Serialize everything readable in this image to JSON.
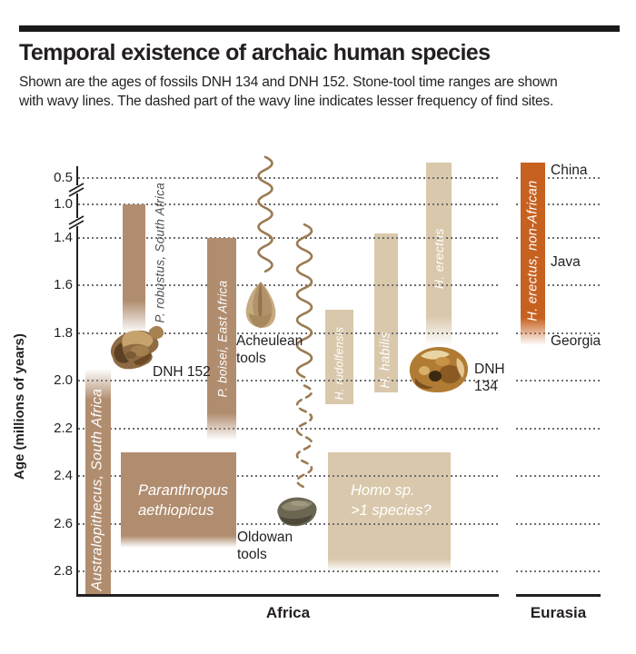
{
  "header": {
    "title": "Temporal existence of archaic human species",
    "subtitle_line1": "Shown are the ages of fossils DNH 134 and DNH 152. Stone-tool time ranges are shown",
    "subtitle_line2": "with wavy lines. The dashed part of the wavy line indicates lesser frequency of find sites."
  },
  "colors": {
    "dark_bar": "#b18d6f",
    "light_bar": "#d9c8ab",
    "orange_bar": "#c76120",
    "wave": "#9b7a53",
    "grid_dots": "#6d6e71",
    "ink": "#231f20",
    "outside_label": "#4d4d4f",
    "bar_label": "#ffffff"
  },
  "chart_data": {
    "type": "bar",
    "subtype": "vertical-timeline",
    "y_axis": {
      "label": "Age (millions of years)",
      "ticks": [
        "0.5",
        "1.0",
        "1.4",
        "1.6",
        "1.8",
        "2.0",
        "2.2",
        "2.4",
        "2.6",
        "2.8"
      ],
      "tick_values": [
        0.5,
        1.0,
        1.4,
        1.6,
        1.8,
        2.0,
        2.2,
        2.4,
        2.6,
        2.8
      ],
      "axis_breaks_between": [
        [
          0.5,
          1.0
        ],
        [
          1.0,
          1.4
        ]
      ],
      "grid": "dotted"
    },
    "regions": [
      {
        "id": "africa",
        "label": "Africa"
      },
      {
        "id": "eurasia",
        "label": "Eurasia"
      }
    ],
    "series": [
      {
        "label": "Australopithecus, South Africa",
        "region": "africa",
        "style": "dark",
        "start_age": 1.95,
        "end_age": 2.9,
        "fade": "start",
        "label_placement": "inside"
      },
      {
        "label": "P. robustus, South Africa",
        "region": "africa",
        "style": "dark",
        "start_age": 1.0,
        "end_age": 1.8,
        "fade": "end",
        "label_placement": "right"
      },
      {
        "label": "P. boisei, East Africa",
        "region": "africa",
        "style": "dark",
        "start_age": 1.4,
        "end_age": 2.25,
        "fade": "end",
        "label_placement": "inside"
      },
      {
        "label": "Paranthropus aethiopicus",
        "label_lines": [
          "Paranthropus",
          "aethiopicus"
        ],
        "region": "africa",
        "style": "dark",
        "start_age": 2.3,
        "end_age": 2.7,
        "fade": "end",
        "label_placement": "inside-horizontal"
      },
      {
        "label": "H. rudolfensis",
        "region": "africa",
        "style": "light",
        "start_age": 1.7,
        "end_age": 2.1,
        "fade": "none",
        "label_placement": "inside"
      },
      {
        "label": "H. habilis",
        "region": "africa",
        "style": "light",
        "start_age": 1.35,
        "end_age": 2.05,
        "fade": "none",
        "label_placement": "inside"
      },
      {
        "label": "H. erectus",
        "region": "africa",
        "style": "light",
        "start_age": 0.2,
        "end_age": 1.85,
        "fade": "end",
        "label_placement": "inside"
      },
      {
        "label": "Homo sp. >1 species?",
        "label_lines": [
          "Homo sp.",
          ">1 species?"
        ],
        "region": "africa",
        "style": "light",
        "start_age": 2.3,
        "end_age": 2.8,
        "fade": "end",
        "label_placement": "inside-horizontal"
      },
      {
        "label": "H. erectus, non-African",
        "region": "eurasia",
        "style": "orange",
        "start_age": 0.2,
        "end_age": 1.85,
        "fade": "end",
        "label_placement": "inside"
      }
    ],
    "stone_tools": [
      {
        "name": "Acheulean tools",
        "label_lines": [
          "Acheulean",
          "tools"
        ],
        "line_style": "solid",
        "start_age": 0.1,
        "end_age": 1.59
      },
      {
        "name": "Oldowan tools",
        "label_lines": [
          "Oldowan",
          "tools"
        ],
        "line_style": "solid-then-dashed",
        "start_age": 1.24,
        "dash_from_age": 2.02,
        "end_age": 2.5
      }
    ],
    "fossils": [
      {
        "label": "DNH 152",
        "label_lines": [
          "DNH 152"
        ],
        "age": 1.9
      },
      {
        "label": "DNH 134",
        "label_lines": [
          "DNH",
          "134"
        ],
        "age": 1.95
      }
    ],
    "eurasia_site_labels": [
      {
        "text": "China",
        "age": 0.35
      },
      {
        "text": "Java",
        "age": 1.5
      },
      {
        "text": "Georgia",
        "age": 1.83
      }
    ]
  }
}
